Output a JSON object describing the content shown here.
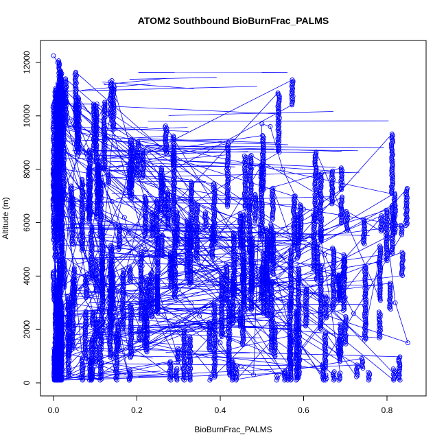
{
  "chart_data": {
    "type": "scatter",
    "title": "ATOM2 Southbound BioBurnFrac_PALMS",
    "xlabel": "BioBurnFrac_PALMS",
    "ylabel": "Altitude (m)",
    "xlim": [
      0,
      0.86
    ],
    "ylim": [
      0,
      12300
    ],
    "xticks": [
      0,
      0.2,
      0.4,
      0.6,
      0.8
    ],
    "xtick_labels": [
      "0.0",
      "0.2",
      "0.4",
      "0.6",
      "0.8"
    ],
    "yticks": [
      0,
      2000,
      4000,
      6000,
      8000,
      10000,
      12000
    ],
    "ytick_labels": [
      "0",
      "2000",
      "4000",
      "6000",
      "8000",
      "10000",
      "12000"
    ],
    "grid": false,
    "legend": "none",
    "marker": "open-circle",
    "color": "#0000ff",
    "series": [
      {
        "x": [
          0.0,
          0.01,
          0.02,
          0.03,
          0.04,
          0.06,
          0.08,
          0.1,
          0.12,
          0.14,
          0.17,
          0.18,
          0.22,
          0.25,
          0.28,
          0.3,
          0.33,
          0.35,
          0.38,
          0.4,
          0.42,
          0.45,
          0.48,
          0.5,
          0.52,
          0.55,
          0.58,
          0.6,
          0.62,
          0.65,
          0.68,
          0.7,
          0.72,
          0.75,
          0.78,
          0.8,
          0.82,
          0.85
        ],
        "y": [
          12250,
          12000,
          11300,
          10500,
          9800,
          9200,
          8600,
          8000,
          7400,
          6800,
          6200,
          5600,
          5000,
          4500,
          4000,
          3500,
          3000,
          2500,
          2000,
          1500,
          1000,
          600,
          300,
          9700,
          9600,
          8000,
          7000,
          6500,
          5500,
          4800,
          3800,
          3200,
          2600,
          2200,
          4500,
          5600,
          3000,
          1500
        ]
      }
    ]
  }
}
